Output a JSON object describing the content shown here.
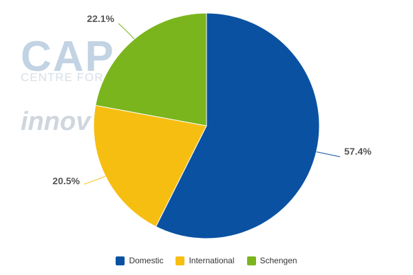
{
  "watermark": {
    "logo_text": "CAP",
    "subtitle_text": "CENTRE FOR",
    "innovation_text": "innov"
  },
  "chart_data": {
    "type": "pie",
    "title": "",
    "slices": [
      {
        "label": "Domestic",
        "value": 57.4,
        "display": "57.4%",
        "color": "#0a52a1"
      },
      {
        "label": "International",
        "value": 20.5,
        "display": "20.5%",
        "color": "#f7be12"
      },
      {
        "label": "Schengen",
        "value": 22.1,
        "display": "22.1%",
        "color": "#7ab51d"
      }
    ],
    "legend_position": "bottom"
  }
}
